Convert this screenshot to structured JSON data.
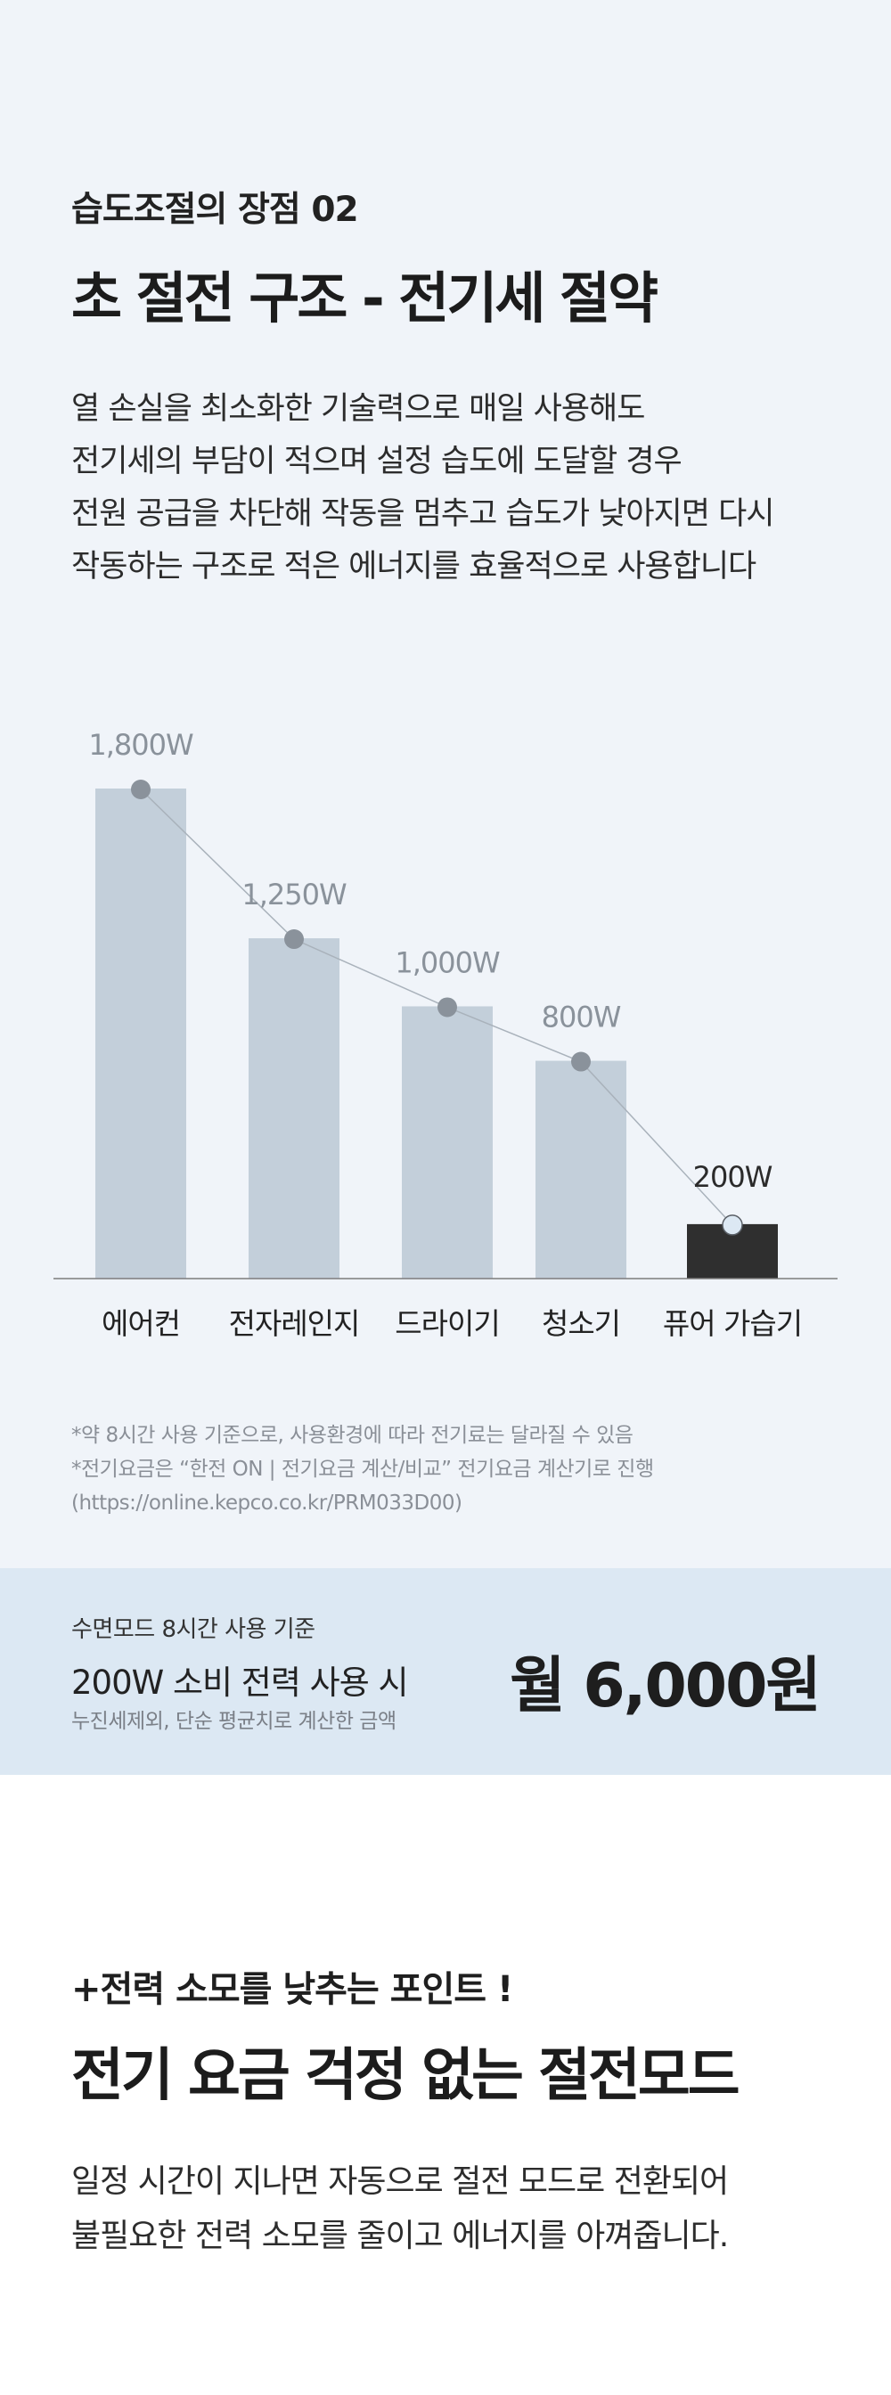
{
  "section": {
    "eyebrow": "습도조절의 장점 02",
    "title": "초 절전 구조 - 전기세 절약",
    "paragraph": [
      "열 손실을 최소화한 기술력으로 매일 사용해도",
      "전기세의 부담이 적으며 설정 습도에 도달할 경우",
      "전원 공급을 차단해 작동을 멈추고 습도가 낮아지면 다시",
      "작동하는 구조로 적은 에너지를 효율적으로 사용합니다"
    ]
  },
  "chart_data": {
    "type": "bar",
    "categories": [
      "에어컨",
      "전자레인지",
      "드라이기",
      "청소기",
      "퓨어 가습기"
    ],
    "values": [
      1800,
      1250,
      1000,
      800,
      200
    ],
    "value_labels": [
      "1,800W",
      "1,250W",
      "1,000W",
      "800W",
      "200W"
    ],
    "unit": "W",
    "highlight_index": 4,
    "connector_line": true,
    "ylim": [
      0,
      1800
    ],
    "grid": false,
    "colors": {
      "bar": "#c3cfda",
      "highlight": "#2f2f2f",
      "point": "#8a929b",
      "highlight_point": "#dce8f3",
      "line": "#a9b2bb",
      "label": "#8a929b",
      "highlight_label": "#2b2b2b",
      "axis": "#7c7c7c"
    }
  },
  "notes": [
    "*약 8시간 사용 기준으로, 사용환경에 따라 전기료는 달라질 수 있음",
    "*전기요금은 “한전 ON | 전기요금 계산/비교” 전기요금 계산기로 진행",
    "(https://online.kepco.co.kr/PRM033D00)"
  ],
  "summary": {
    "caption": "수면모드 8시간 사용 기준",
    "main": "200W 소비 전력 사용 시",
    "sub": "누진세제외, 단순 평균치로 계산한 금액",
    "price": "월 6,000원"
  },
  "section2": {
    "tip": "+전력 소모를 낮추는 포인트 !",
    "title": "전기 요금 걱정 없는 절전모드",
    "paragraph": [
      "일정 시간이 지나면 자동으로 절전 모드로 전환되어",
      "불필요한 전력 소모를 줄이고 에너지를 아껴줍니다."
    ]
  },
  "colors": {
    "section_bg": "#f0f4f9",
    "band_bg": "#dce8f3",
    "page_bg": "#ffffff"
  }
}
